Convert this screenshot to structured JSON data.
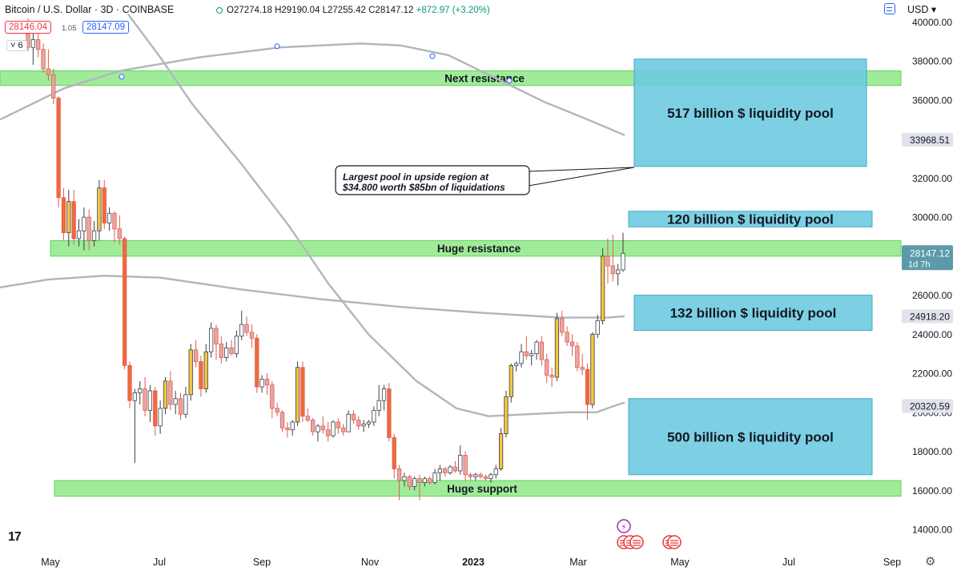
{
  "header": {
    "title": "Bitcoin / U.S. Dollar · 3D · COINBASE",
    "ohlc_text": "O27274.18 H29190.04 L27255.42 C28147.12",
    "change_text": "+872.97 (+3.20%)",
    "sell_price": "28146.04",
    "spread": "1.05",
    "buy_price": "28147.09",
    "indicator_count": "6",
    "currency": "USD"
  },
  "colors": {
    "up": "#ffffff",
    "down": "#e05a4f",
    "up_fill_hl": "#f5c542",
    "zone_green": "#8fe887",
    "pool_blue": "#6fcbe0",
    "ma_gray": "#b2b5be"
  },
  "chart_data": {
    "type": "candlestick",
    "ylim": [
      13000,
      41000
    ],
    "y_ticks": [
      "14000.00",
      "16000.00",
      "18000.00",
      "20000.00",
      "22000.00",
      "24000.00",
      "26000.00",
      "28000.00",
      "30000.00",
      "32000.00",
      "34000.00",
      "36000.00",
      "38000.00",
      "40000.00"
    ],
    "x_ticks": [
      "May",
      "Jul",
      "Sep",
      "Nov",
      "2023",
      "Mar",
      "May",
      "Jul",
      "Sep"
    ],
    "price_labels": [
      {
        "value": 33968.51,
        "text": "33968.51",
        "style": "gray"
      },
      {
        "value": 28147.12,
        "text": "28147.12",
        "sub": "1d 7h",
        "style": "current"
      },
      {
        "value": 24918.2,
        "text": "24918.20",
        "style": "gray"
      },
      {
        "value": 20320.59,
        "text": "20320.59",
        "style": "gray"
      }
    ],
    "zones": [
      {
        "label": "Next resistance",
        "y_from": 36750,
        "y_to": 37500,
        "x_start": 0,
        "x_end": 1125
      },
      {
        "label": "Huge resistance",
        "y_from": 28000,
        "y_to": 28800,
        "x_start": 63,
        "x_end": 1125
      },
      {
        "label": "Huge support",
        "y_from": 15700,
        "y_to": 16500,
        "x_start": 68,
        "x_end": 1125
      }
    ],
    "liquidity_pools": [
      {
        "label": "517 billion $ liquidity pool",
        "y_from": 32600,
        "y_to": 38100
      },
      {
        "label": "120 billion $ liquidity pool",
        "y_from": 29500,
        "y_to": 30300
      },
      {
        "label": "132 billion $ liquidity pool",
        "y_from": 24200,
        "y_to": 26000
      },
      {
        "label": "500 billion $ liquidity pool",
        "y_from": 16800,
        "y_to": 20700
      }
    ],
    "annotation": {
      "lines": [
        "Largest pool in upside region at",
        "$34.800 worth $85bn of liquidations"
      ]
    },
    "ohlc": [
      [
        39400,
        40200,
        38500,
        38700
      ],
      [
        38700,
        39700,
        37800,
        39100
      ],
      [
        39100,
        39500,
        38200,
        38600
      ],
      [
        38600,
        38900,
        37400,
        37600
      ],
      [
        37600,
        38600,
        37000,
        37300
      ],
      [
        37300,
        37600,
        35800,
        36100
      ],
      [
        36100,
        36200,
        30500,
        31000
      ],
      [
        31000,
        31500,
        28800,
        29200
      ],
      [
        29200,
        31400,
        28500,
        30800
      ],
      [
        30800,
        31400,
        28600,
        28900
      ],
      [
        28900,
        29900,
        28500,
        29300
      ],
      [
        29300,
        30500,
        28300,
        30000
      ],
      [
        30000,
        30400,
        28300,
        28800
      ],
      [
        28800,
        29800,
        28500,
        29300
      ],
      [
        29300,
        31900,
        28800,
        31500
      ],
      [
        31500,
        31900,
        29400,
        29700
      ],
      [
        29700,
        30500,
        29300,
        30200
      ],
      [
        30200,
        30300,
        28700,
        29400
      ],
      [
        29400,
        30100,
        28600,
        28900
      ],
      [
        28900,
        29000,
        22200,
        22400
      ],
      [
        22400,
        22600,
        20200,
        20600
      ],
      [
        20600,
        21200,
        17400,
        21000
      ],
      [
        21000,
        21600,
        20400,
        21200
      ],
      [
        21200,
        21800,
        19800,
        20100
      ],
      [
        20100,
        21400,
        19500,
        21100
      ],
      [
        21100,
        21300,
        18800,
        19300
      ],
      [
        19300,
        20600,
        18900,
        20200
      ],
      [
        20200,
        21800,
        19900,
        21600
      ],
      [
        21600,
        22100,
        20100,
        20400
      ],
      [
        20400,
        21100,
        19900,
        20700
      ],
      [
        20700,
        21000,
        19600,
        19900
      ],
      [
        19900,
        21300,
        19700,
        20900
      ],
      [
        20900,
        23500,
        20600,
        23200
      ],
      [
        23200,
        23700,
        22300,
        22600
      ],
      [
        22600,
        22900,
        20800,
        21200
      ],
      [
        21200,
        23500,
        21000,
        23100
      ],
      [
        23100,
        24600,
        22800,
        24300
      ],
      [
        24300,
        24500,
        22700,
        23500
      ],
      [
        23500,
        23900,
        22500,
        22800
      ],
      [
        22800,
        23600,
        22600,
        23300
      ],
      [
        23300,
        23700,
        22900,
        23000
      ],
      [
        23000,
        24200,
        22800,
        23900
      ],
      [
        23900,
        25200,
        23700,
        24500
      ],
      [
        24500,
        24900,
        23900,
        24100
      ],
      [
        24100,
        24500,
        23300,
        23800
      ],
      [
        23800,
        24000,
        21000,
        21300
      ],
      [
        21300,
        21900,
        21000,
        21700
      ],
      [
        21700,
        22000,
        20900,
        21400
      ],
      [
        21400,
        21600,
        19700,
        20200
      ],
      [
        20200,
        20500,
        19800,
        20000
      ],
      [
        20000,
        20100,
        19000,
        19200
      ],
      [
        19200,
        19500,
        18700,
        19100
      ],
      [
        19100,
        19600,
        18800,
        19500
      ],
      [
        19500,
        22600,
        19300,
        22300
      ],
      [
        22300,
        22600,
        19500,
        19800
      ],
      [
        19800,
        20200,
        19500,
        19600
      ],
      [
        19600,
        19700,
        18800,
        19000
      ],
      [
        19000,
        19400,
        18500,
        19300
      ],
      [
        19300,
        19800,
        18900,
        19100
      ],
      [
        19100,
        19500,
        18500,
        18800
      ],
      [
        18800,
        19600,
        18700,
        19500
      ],
      [
        19500,
        19700,
        18900,
        19200
      ],
      [
        19200,
        19400,
        18800,
        19000
      ],
      [
        19000,
        20100,
        19000,
        19900
      ],
      [
        19900,
        20100,
        19400,
        19600
      ],
      [
        19600,
        19800,
        19100,
        19300
      ],
      [
        19300,
        19600,
        19000,
        19400
      ],
      [
        19400,
        19600,
        19200,
        19500
      ],
      [
        19500,
        20300,
        19300,
        20100
      ],
      [
        20100,
        21400,
        19800,
        20600
      ],
      [
        20600,
        21400,
        20100,
        21200
      ],
      [
        21200,
        21500,
        18500,
        18700
      ],
      [
        18700,
        18900,
        16600,
        17100
      ],
      [
        17100,
        17300,
        15500,
        16500
      ],
      [
        16500,
        16900,
        16200,
        16700
      ],
      [
        16700,
        16800,
        16000,
        16200
      ],
      [
        16200,
        16700,
        16000,
        16600
      ],
      [
        16600,
        16800,
        15500,
        16400
      ],
      [
        16400,
        16700,
        16200,
        16600
      ],
      [
        16600,
        16700,
        16300,
        16400
      ],
      [
        16400,
        17100,
        16300,
        16900
      ],
      [
        16900,
        17300,
        16500,
        17100
      ],
      [
        17100,
        17200,
        16700,
        16900
      ],
      [
        16900,
        17300,
        16800,
        17200
      ],
      [
        17200,
        17500,
        16900,
        17000
      ],
      [
        17000,
        18300,
        16800,
        17800
      ],
      [
        17800,
        18000,
        16500,
        16800
      ],
      [
        16800,
        16900,
        16500,
        16700
      ],
      [
        16700,
        16900,
        16500,
        16800
      ],
      [
        16800,
        16900,
        16600,
        16700
      ],
      [
        16700,
        16800,
        16500,
        16600
      ],
      [
        16600,
        16900,
        16400,
        16800
      ],
      [
        16800,
        17300,
        16600,
        17100
      ],
      [
        17100,
        19200,
        17000,
        18900
      ],
      [
        18900,
        21100,
        18700,
        20800
      ],
      [
        20800,
        22500,
        20500,
        22400
      ],
      [
        22400,
        22600,
        22100,
        22500
      ],
      [
        22500,
        23500,
        22300,
        23100
      ],
      [
        23100,
        23900,
        22700,
        22900
      ],
      [
        22900,
        23200,
        22400,
        23000
      ],
      [
        23000,
        23700,
        22700,
        23600
      ],
      [
        23600,
        23900,
        22400,
        22700
      ],
      [
        22700,
        23000,
        21500,
        21900
      ],
      [
        21900,
        22300,
        21300,
        21800
      ],
      [
        21800,
        25100,
        21600,
        24800
      ],
      [
        24800,
        25200,
        23900,
        24100
      ],
      [
        24100,
        24400,
        23400,
        23600
      ],
      [
        23600,
        24000,
        22900,
        23400
      ],
      [
        23400,
        23600,
        22100,
        22300
      ],
      [
        22300,
        23000,
        21900,
        22200
      ],
      [
        22200,
        22500,
        19600,
        20400
      ],
      [
        20400,
        24100,
        20200,
        24000
      ],
      [
        24000,
        25000,
        23800,
        24700
      ],
      [
        24700,
        28400,
        24500,
        28000
      ],
      [
        28000,
        28900,
        26600,
        27500
      ],
      [
        27500,
        29100,
        26700,
        27100
      ],
      [
        27100,
        27600,
        26500,
        27300
      ],
      [
        27300,
        29200,
        27200,
        28147
      ]
    ],
    "moving_averages": [
      {
        "name": "MA-a",
        "points": [
          [
            0,
            35000
          ],
          [
            40,
            35800
          ],
          [
            80,
            36600
          ],
          [
            150,
            37500
          ],
          [
            250,
            38200
          ],
          [
            350,
            38700
          ],
          [
            450,
            38900
          ],
          [
            500,
            38800
          ],
          [
            560,
            38300
          ],
          [
            620,
            37100
          ],
          [
            680,
            35900
          ],
          [
            740,
            34900
          ],
          [
            780,
            34200
          ]
        ]
      },
      {
        "name": "MA-b",
        "points": [
          [
            160,
            40400
          ],
          [
            200,
            38200
          ],
          [
            240,
            35800
          ],
          [
            300,
            32800
          ],
          [
            360,
            29600
          ],
          [
            410,
            26600
          ],
          [
            460,
            24000
          ],
          [
            520,
            21600
          ],
          [
            570,
            20200
          ],
          [
            610,
            19800
          ],
          [
            660,
            19900
          ],
          [
            710,
            20000
          ],
          [
            745,
            20000
          ],
          [
            765,
            20300
          ],
          [
            780,
            20500
          ]
        ]
      },
      {
        "name": "MA-c",
        "points": [
          [
            0,
            26400
          ],
          [
            60,
            26800
          ],
          [
            130,
            27000
          ],
          [
            200,
            26900
          ],
          [
            300,
            26300
          ],
          [
            400,
            25800
          ],
          [
            500,
            25400
          ],
          [
            600,
            25100
          ],
          [
            700,
            24850
          ],
          [
            760,
            24860
          ],
          [
            780,
            24920
          ]
        ]
      }
    ]
  },
  "footer": {
    "logo": "17",
    "settings_icon": "gear-icon"
  }
}
